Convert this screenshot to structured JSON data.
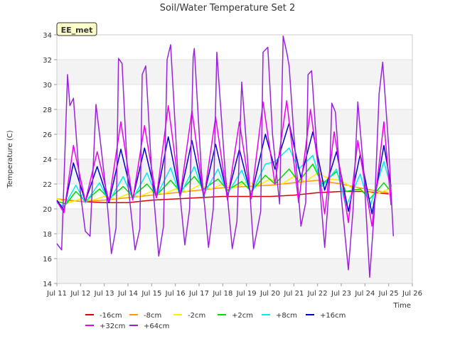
{
  "chart_data": {
    "type": "line",
    "title": "Soil/Water Temperature Set 2",
    "badge": "EE_met",
    "xlabel": "Time",
    "ylabel": "Temperature (C)",
    "xlim": [
      11,
      26
    ],
    "ylim": [
      14,
      34
    ],
    "x_ticks": [
      11,
      12,
      13,
      14,
      15,
      16,
      17,
      18,
      19,
      20,
      21,
      22,
      23,
      24,
      25,
      26
    ],
    "x_tick_labels": [
      "Jul 11",
      "Jul 12",
      "Jul 13",
      "Jul 14",
      "Jul 15",
      "Jul 16",
      "Jul 17",
      "Jul 18",
      "Jul 19",
      "Jul 20",
      "Jul 21",
      "Jul 22",
      "Jul 23",
      "Jul 24",
      "Jul 25",
      "Jul 26"
    ],
    "y_ticks": [
      14,
      16,
      18,
      20,
      22,
      24,
      26,
      28,
      30,
      32,
      34
    ],
    "grid": "banded",
    "legend_position": "bottom",
    "series": [
      {
        "name": "-16cm",
        "color": "#dd0000",
        "points": [
          [
            11.0,
            20.8
          ],
          [
            12.0,
            20.6
          ],
          [
            13.0,
            20.5
          ],
          [
            14.0,
            20.5
          ],
          [
            15.0,
            20.7
          ],
          [
            16.0,
            20.8
          ],
          [
            17.0,
            20.9
          ],
          [
            18.0,
            21.0
          ],
          [
            19.0,
            21.0
          ],
          [
            20.0,
            21.0
          ],
          [
            21.0,
            21.1
          ],
          [
            22.0,
            21.3
          ],
          [
            23.0,
            21.4
          ],
          [
            24.0,
            21.4
          ],
          [
            25.0,
            21.2
          ]
        ]
      },
      {
        "name": "-8cm",
        "color": "#ff9900",
        "points": [
          [
            11.0,
            20.8
          ],
          [
            12.0,
            20.6
          ],
          [
            13.0,
            20.7
          ],
          [
            14.0,
            20.9
          ],
          [
            15.0,
            21.1
          ],
          [
            16.0,
            21.3
          ],
          [
            17.0,
            21.5
          ],
          [
            18.0,
            21.7
          ],
          [
            19.0,
            21.8
          ],
          [
            20.0,
            21.9
          ],
          [
            21.0,
            22.1
          ],
          [
            22.0,
            22.3
          ],
          [
            23.0,
            22.0
          ],
          [
            24.0,
            21.6
          ],
          [
            25.0,
            21.3
          ]
        ]
      },
      {
        "name": "-2cm",
        "color": "#ffee00",
        "points": [
          [
            11.0,
            20.8
          ],
          [
            11.5,
            20.5
          ],
          [
            12.0,
            20.8
          ],
          [
            12.5,
            20.7
          ],
          [
            13.0,
            21.0
          ],
          [
            13.5,
            20.8
          ],
          [
            14.0,
            21.2
          ],
          [
            14.5,
            21.0
          ],
          [
            15.0,
            21.4
          ],
          [
            15.5,
            21.2
          ],
          [
            16.0,
            21.6
          ],
          [
            16.5,
            21.4
          ],
          [
            17.0,
            21.9
          ],
          [
            17.5,
            21.6
          ],
          [
            18.0,
            22.0
          ],
          [
            18.5,
            21.7
          ],
          [
            19.0,
            22.2
          ],
          [
            19.5,
            21.9
          ],
          [
            20.0,
            22.4
          ],
          [
            20.5,
            22.0
          ],
          [
            21.0,
            22.6
          ],
          [
            21.5,
            22.2
          ],
          [
            22.0,
            22.9
          ],
          [
            22.5,
            22.4
          ],
          [
            23.0,
            22.3
          ],
          [
            23.5,
            21.6
          ],
          [
            24.0,
            21.4
          ],
          [
            24.5,
            21.2
          ],
          [
            25.0,
            21.6
          ]
        ]
      },
      {
        "name": "+2cm",
        "color": "#00dd00",
        "points": [
          [
            11.0,
            20.6
          ],
          [
            11.4,
            20.4
          ],
          [
            11.8,
            21.4
          ],
          [
            12.2,
            20.6
          ],
          [
            12.8,
            21.6
          ],
          [
            13.2,
            20.8
          ],
          [
            13.8,
            21.8
          ],
          [
            14.2,
            21.0
          ],
          [
            14.8,
            22.0
          ],
          [
            15.2,
            21.1
          ],
          [
            15.8,
            22.3
          ],
          [
            16.2,
            21.4
          ],
          [
            16.8,
            22.6
          ],
          [
            17.2,
            21.6
          ],
          [
            17.8,
            22.4
          ],
          [
            18.2,
            21.5
          ],
          [
            18.8,
            22.2
          ],
          [
            19.2,
            21.4
          ],
          [
            19.8,
            22.7
          ],
          [
            20.2,
            22.0
          ],
          [
            20.8,
            23.2
          ],
          [
            21.2,
            22.2
          ],
          [
            21.8,
            23.6
          ],
          [
            22.2,
            22.0
          ],
          [
            22.8,
            23.0
          ],
          [
            23.2,
            21.4
          ],
          [
            23.8,
            21.6
          ],
          [
            24.2,
            20.8
          ],
          [
            24.8,
            22.1
          ],
          [
            25.0,
            21.6
          ]
        ]
      },
      {
        "name": "+8cm",
        "color": "#00eeee",
        "points": [
          [
            11.0,
            20.5
          ],
          [
            11.3,
            20.2
          ],
          [
            11.8,
            21.9
          ],
          [
            12.2,
            20.5
          ],
          [
            12.8,
            22.1
          ],
          [
            13.2,
            20.6
          ],
          [
            13.8,
            22.6
          ],
          [
            14.2,
            20.8
          ],
          [
            14.8,
            22.9
          ],
          [
            15.2,
            21.0
          ],
          [
            15.8,
            23.3
          ],
          [
            16.2,
            21.1
          ],
          [
            16.8,
            23.4
          ],
          [
            17.2,
            21.2
          ],
          [
            17.8,
            23.2
          ],
          [
            18.2,
            21.2
          ],
          [
            18.8,
            23.1
          ],
          [
            19.2,
            21.2
          ],
          [
            19.8,
            23.6
          ],
          [
            20.2,
            23.8
          ],
          [
            20.8,
            24.9
          ],
          [
            21.2,
            23.2
          ],
          [
            21.8,
            24.3
          ],
          [
            22.2,
            21.8
          ],
          [
            22.8,
            23.2
          ],
          [
            23.2,
            20.2
          ],
          [
            23.8,
            22.8
          ],
          [
            24.2,
            20.1
          ],
          [
            24.8,
            23.8
          ],
          [
            25.0,
            22.4
          ]
        ]
      },
      {
        "name": "+16cm",
        "color": "#0000cc",
        "points": [
          [
            11.0,
            20.7
          ],
          [
            11.3,
            19.9
          ],
          [
            11.7,
            23.7
          ],
          [
            12.2,
            20.6
          ],
          [
            12.7,
            23.4
          ],
          [
            13.2,
            20.5
          ],
          [
            13.7,
            24.8
          ],
          [
            14.2,
            20.8
          ],
          [
            14.7,
            24.9
          ],
          [
            15.2,
            20.9
          ],
          [
            15.7,
            25.8
          ],
          [
            16.2,
            21.0
          ],
          [
            16.7,
            25.5
          ],
          [
            17.2,
            21.0
          ],
          [
            17.7,
            25.2
          ],
          [
            18.2,
            21.0
          ],
          [
            18.7,
            24.8
          ],
          [
            19.2,
            21.0
          ],
          [
            19.8,
            26.0
          ],
          [
            20.2,
            23.2
          ],
          [
            20.8,
            26.9
          ],
          [
            21.3,
            22.5
          ],
          [
            21.8,
            26.2
          ],
          [
            22.3,
            21.5
          ],
          [
            22.8,
            24.6
          ],
          [
            23.3,
            19.8
          ],
          [
            23.8,
            24.4
          ],
          [
            24.3,
            19.6
          ],
          [
            24.8,
            25.1
          ],
          [
            25.1,
            21.8
          ]
        ]
      },
      {
        "name": "+32cm",
        "color": "#ee00ee",
        "points": [
          [
            11.0,
            20.6
          ],
          [
            11.3,
            19.7
          ],
          [
            11.7,
            25.1
          ],
          [
            12.2,
            20.6
          ],
          [
            12.7,
            24.6
          ],
          [
            13.2,
            20.6
          ],
          [
            13.7,
            27.0
          ],
          [
            14.2,
            20.7
          ],
          [
            14.7,
            26.7
          ],
          [
            15.2,
            20.9
          ],
          [
            15.7,
            28.3
          ],
          [
            16.2,
            21.0
          ],
          [
            16.7,
            27.9
          ],
          [
            17.2,
            20.8
          ],
          [
            17.7,
            27.4
          ],
          [
            18.2,
            20.7
          ],
          [
            18.7,
            27.0
          ],
          [
            19.2,
            20.8
          ],
          [
            19.7,
            28.6
          ],
          [
            20.2,
            22.0
          ],
          [
            20.7,
            28.7
          ],
          [
            21.2,
            20.5
          ],
          [
            21.7,
            28.0
          ],
          [
            22.3,
            19.6
          ],
          [
            22.7,
            26.2
          ],
          [
            23.3,
            18.9
          ],
          [
            23.7,
            25.5
          ],
          [
            24.3,
            18.6
          ],
          [
            24.8,
            27.0
          ],
          [
            25.1,
            20.3
          ]
        ]
      },
      {
        "name": "+64cm",
        "color": "#9922dd",
        "points": [
          [
            11.0,
            17.2
          ],
          [
            11.2,
            16.7
          ],
          [
            11.45,
            30.8
          ],
          [
            11.55,
            28.3
          ],
          [
            11.7,
            28.9
          ],
          [
            12.0,
            21.2
          ],
          [
            12.2,
            18.2
          ],
          [
            12.4,
            17.8
          ],
          [
            12.65,
            28.4
          ],
          [
            12.8,
            26.0
          ],
          [
            13.1,
            21.0
          ],
          [
            13.3,
            16.4
          ],
          [
            13.5,
            18.5
          ],
          [
            13.6,
            32.1
          ],
          [
            13.75,
            31.7
          ],
          [
            14.0,
            22.0
          ],
          [
            14.3,
            16.7
          ],
          [
            14.5,
            18.4
          ],
          [
            14.6,
            30.8
          ],
          [
            14.75,
            31.5
          ],
          [
            15.0,
            23.0
          ],
          [
            15.3,
            16.2
          ],
          [
            15.5,
            18.6
          ],
          [
            15.65,
            32.0
          ],
          [
            15.8,
            33.2
          ],
          [
            16.1,
            23.0
          ],
          [
            16.4,
            17.1
          ],
          [
            16.6,
            20.0
          ],
          [
            16.75,
            32.2
          ],
          [
            16.8,
            32.9
          ],
          [
            17.1,
            23.0
          ],
          [
            17.4,
            16.9
          ],
          [
            17.6,
            20.0
          ],
          [
            17.75,
            32.6
          ],
          [
            18.1,
            23.0
          ],
          [
            18.4,
            16.8
          ],
          [
            18.6,
            19.0
          ],
          [
            18.8,
            30.2
          ],
          [
            19.1,
            22.6
          ],
          [
            19.3,
            16.8
          ],
          [
            19.6,
            19.8
          ],
          [
            19.7,
            32.6
          ],
          [
            19.9,
            33.0
          ],
          [
            20.1,
            26.0
          ],
          [
            20.4,
            20.4
          ],
          [
            20.55,
            33.9
          ],
          [
            20.7,
            32.6
          ],
          [
            20.8,
            31.5
          ],
          [
            21.0,
            26.0
          ],
          [
            21.3,
            18.6
          ],
          [
            21.5,
            20.5
          ],
          [
            21.6,
            30.8
          ],
          [
            21.75,
            31.1
          ],
          [
            22.0,
            24.0
          ],
          [
            22.3,
            16.9
          ],
          [
            22.5,
            22.0
          ],
          [
            22.6,
            28.5
          ],
          [
            22.75,
            27.8
          ],
          [
            23.0,
            21.0
          ],
          [
            23.3,
            15.1
          ],
          [
            23.5,
            20.0
          ],
          [
            23.7,
            28.6
          ],
          [
            23.95,
            23.0
          ],
          [
            24.2,
            14.5
          ],
          [
            24.4,
            20.0
          ],
          [
            24.6,
            29.3
          ],
          [
            24.75,
            31.8
          ],
          [
            25.0,
            25.0
          ],
          [
            25.2,
            17.8
          ]
        ]
      }
    ]
  }
}
